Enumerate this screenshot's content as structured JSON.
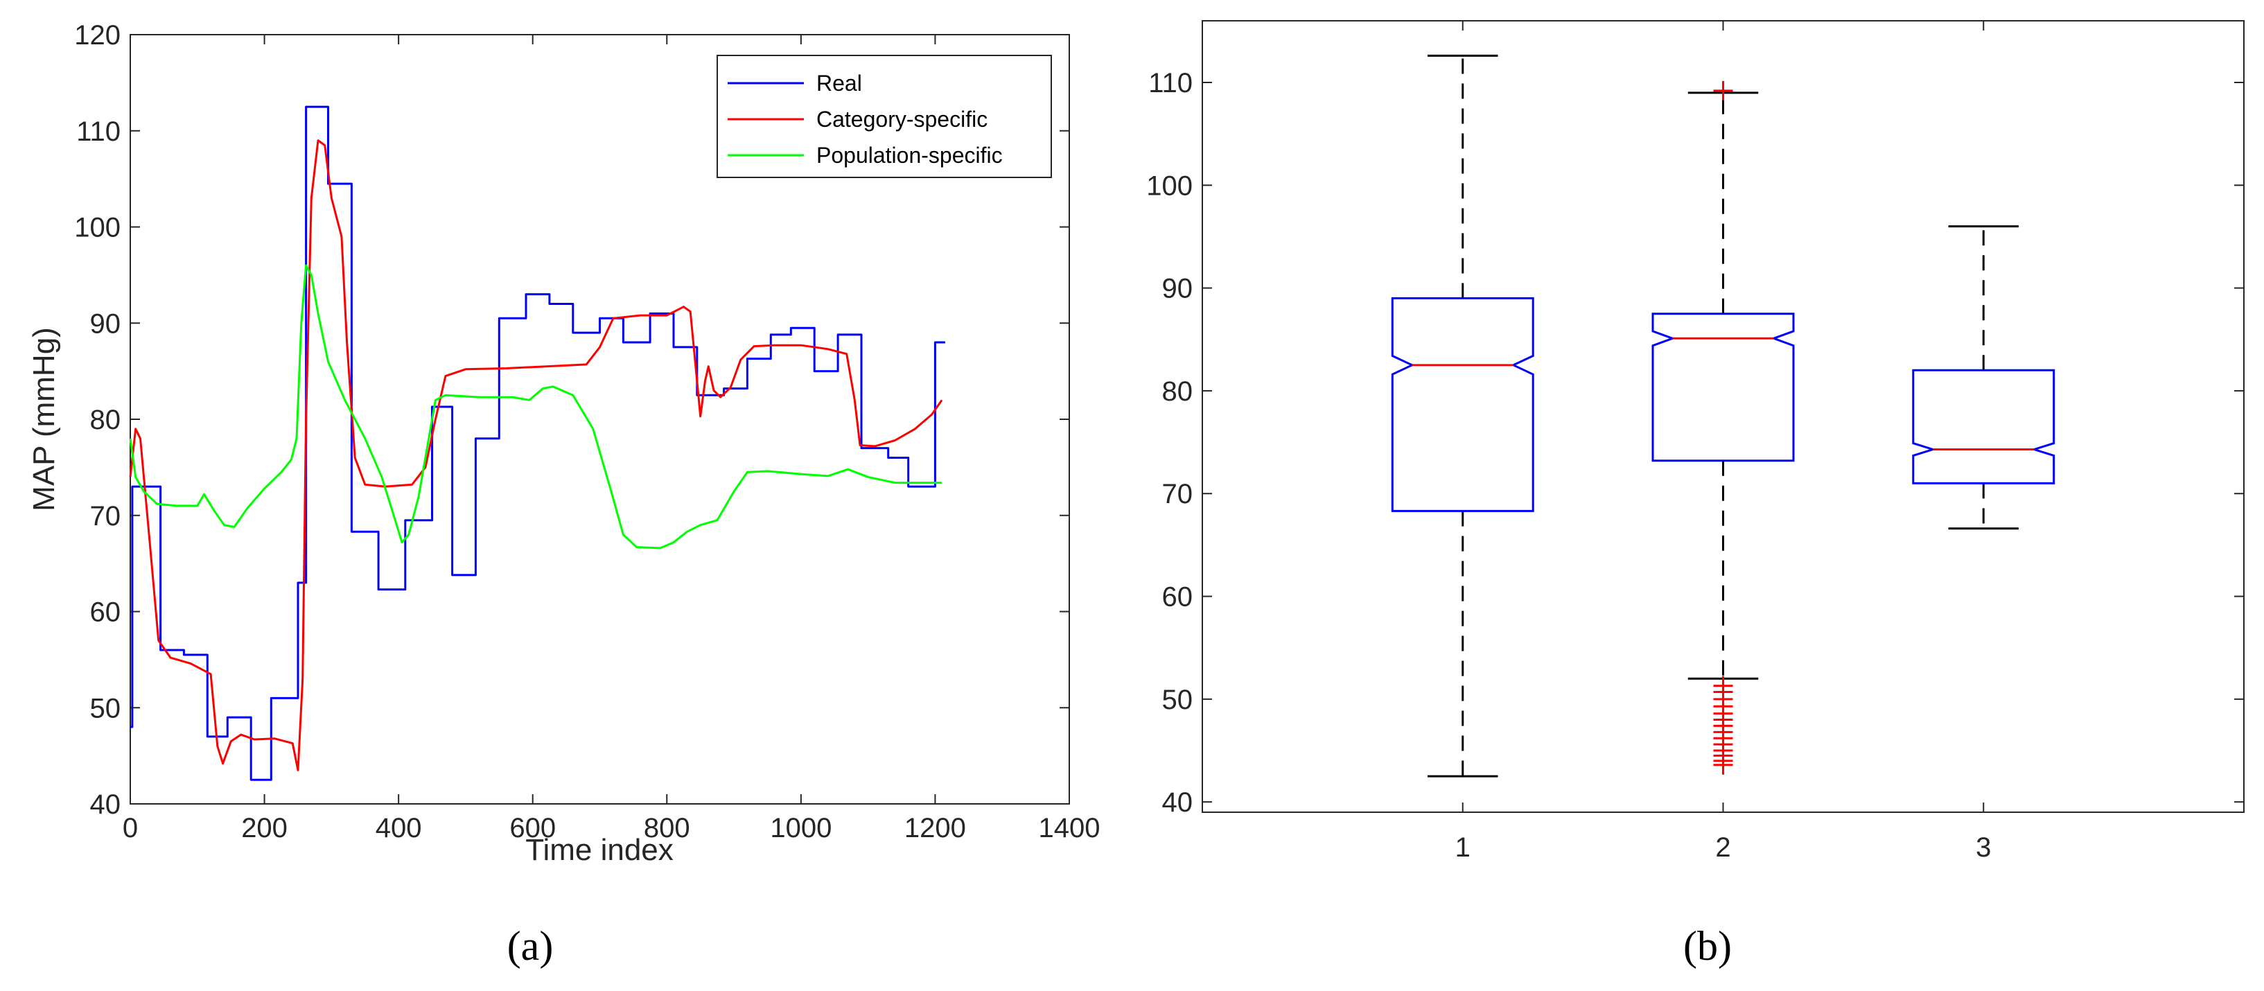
{
  "chart_data": [
    {
      "type": "line",
      "xlabel": "Time index",
      "ylabel": "MAP (mmHg)",
      "xlim": [
        0,
        1400
      ],
      "ylim": [
        40,
        120
      ],
      "xticks": [
        0,
        200,
        400,
        600,
        800,
        1000,
        1200,
        1400
      ],
      "yticks": [
        40,
        50,
        60,
        70,
        80,
        90,
        100,
        110,
        120
      ],
      "legend_position": "top-right",
      "grid": false,
      "caption": "(a)",
      "series": [
        {
          "name": "Real",
          "color": "#0000ff",
          "points": [
            [
              0,
              48
            ],
            [
              3,
              48
            ],
            [
              3,
              73
            ],
            [
              45,
              73
            ],
            [
              45,
              56
            ],
            [
              80,
              56
            ],
            [
              80,
              55.5
            ],
            [
              115,
              55.5
            ],
            [
              115,
              47
            ],
            [
              145,
              47
            ],
            [
              145,
              49
            ],
            [
              180,
              49
            ],
            [
              180,
              42.5
            ],
            [
              210,
              42.5
            ],
            [
              210,
              51
            ],
            [
              250,
              51
            ],
            [
              250,
              63
            ],
            [
              262,
              63
            ],
            [
              262,
              112.5
            ],
            [
              295,
              112.5
            ],
            [
              295,
              104.5
            ],
            [
              330,
              104.5
            ],
            [
              330,
              68.3
            ],
            [
              370,
              68.3
            ],
            [
              370,
              62.3
            ],
            [
              410,
              62.3
            ],
            [
              410,
              69.5
            ],
            [
              450,
              69.5
            ],
            [
              450,
              81.3
            ],
            [
              480,
              81.3
            ],
            [
              480,
              63.8
            ],
            [
              515,
              63.8
            ],
            [
              515,
              78
            ],
            [
              550,
              78
            ],
            [
              550,
              90.5
            ],
            [
              590,
              90.5
            ],
            [
              590,
              93
            ],
            [
              625,
              93
            ],
            [
              625,
              92
            ],
            [
              660,
              92
            ],
            [
              660,
              89
            ],
            [
              700,
              89
            ],
            [
              700,
              90.5
            ],
            [
              735,
              90.5
            ],
            [
              735,
              88
            ],
            [
              775,
              88
            ],
            [
              775,
              91
            ],
            [
              810,
              91
            ],
            [
              810,
              87.5
            ],
            [
              845,
              87.5
            ],
            [
              845,
              82.5
            ],
            [
              885,
              82.5
            ],
            [
              885,
              83.2
            ],
            [
              920,
              83.2
            ],
            [
              920,
              86.3
            ],
            [
              955,
              86.3
            ],
            [
              955,
              88.8
            ],
            [
              985,
              88.8
            ],
            [
              985,
              89.5
            ],
            [
              1020,
              89.5
            ],
            [
              1020,
              85
            ],
            [
              1055,
              85
            ],
            [
              1055,
              88.8
            ],
            [
              1090,
              88.8
            ],
            [
              1090,
              77
            ],
            [
              1130,
              77
            ],
            [
              1130,
              76
            ],
            [
              1160,
              76
            ],
            [
              1160,
              73
            ],
            [
              1200,
              73
            ],
            [
              1200,
              88
            ],
            [
              1215,
              88
            ]
          ]
        },
        {
          "name": "Category-specific",
          "color": "#ff0000",
          "points": [
            [
              0,
              74
            ],
            [
              8,
              79
            ],
            [
              15,
              78
            ],
            [
              28,
              68
            ],
            [
              42,
              57
            ],
            [
              60,
              55.2
            ],
            [
              90,
              54.6
            ],
            [
              120,
              53.5
            ],
            [
              130,
              46
            ],
            [
              138,
              44.2
            ],
            [
              150,
              46.5
            ],
            [
              165,
              47.2
            ],
            [
              185,
              46.7
            ],
            [
              215,
              46.8
            ],
            [
              242,
              46.3
            ],
            [
              250,
              43.5
            ],
            [
              257,
              53
            ],
            [
              262,
              80
            ],
            [
              270,
              103
            ],
            [
              280,
              109
            ],
            [
              290,
              108.5
            ],
            [
              300,
              103
            ],
            [
              315,
              99
            ],
            [
              323,
              88
            ],
            [
              335,
              76
            ],
            [
              350,
              73.2
            ],
            [
              380,
              73
            ],
            [
              420,
              73.2
            ],
            [
              440,
              75
            ],
            [
              455,
              80
            ],
            [
              470,
              84.5
            ],
            [
              500,
              85.2
            ],
            [
              560,
              85.3
            ],
            [
              620,
              85.5
            ],
            [
              680,
              85.7
            ],
            [
              700,
              87.5
            ],
            [
              720,
              90.5
            ],
            [
              760,
              90.8
            ],
            [
              800,
              90.8
            ],
            [
              825,
              91.7
            ],
            [
              835,
              91.2
            ],
            [
              845,
              84
            ],
            [
              850,
              80.3
            ],
            [
              857,
              84
            ],
            [
              862,
              85.5
            ],
            [
              870,
              83
            ],
            [
              880,
              82.3
            ],
            [
              895,
              83.3
            ],
            [
              910,
              86.2
            ],
            [
              930,
              87.6
            ],
            [
              960,
              87.7
            ],
            [
              1000,
              87.7
            ],
            [
              1040,
              87.3
            ],
            [
              1068,
              86.8
            ],
            [
              1080,
              82
            ],
            [
              1088,
              77.3
            ],
            [
              1110,
              77.2
            ],
            [
              1140,
              77.8
            ],
            [
              1170,
              79
            ],
            [
              1195,
              80.5
            ],
            [
              1210,
              82
            ]
          ]
        },
        {
          "name": "Population-specific",
          "color": "#00ff00",
          "points": [
            [
              0,
              78
            ],
            [
              8,
              74
            ],
            [
              20,
              72.5
            ],
            [
              40,
              71.2
            ],
            [
              70,
              71
            ],
            [
              100,
              71
            ],
            [
              110,
              72.2
            ],
            [
              125,
              70.5
            ],
            [
              140,
              69
            ],
            [
              155,
              68.8
            ],
            [
              175,
              70.8
            ],
            [
              200,
              72.8
            ],
            [
              225,
              74.5
            ],
            [
              240,
              75.8
            ],
            [
              248,
              78
            ],
            [
              255,
              90
            ],
            [
              262,
              96
            ],
            [
              270,
              95
            ],
            [
              280,
              91
            ],
            [
              295,
              86
            ],
            [
              320,
              82
            ],
            [
              350,
              78
            ],
            [
              375,
              74
            ],
            [
              395,
              69.5
            ],
            [
              405,
              67.2
            ],
            [
              415,
              68
            ],
            [
              430,
              72
            ],
            [
              445,
              78
            ],
            [
              455,
              82
            ],
            [
              470,
              82.5
            ],
            [
              520,
              82.3
            ],
            [
              570,
              82.3
            ],
            [
              595,
              82
            ],
            [
              615,
              83.2
            ],
            [
              630,
              83.4
            ],
            [
              660,
              82.5
            ],
            [
              690,
              79
            ],
            [
              715,
              73
            ],
            [
              735,
              68
            ],
            [
              755,
              66.7
            ],
            [
              790,
              66.6
            ],
            [
              810,
              67.2
            ],
            [
              830,
              68.3
            ],
            [
              850,
              69
            ],
            [
              875,
              69.5
            ],
            [
              900,
              72.5
            ],
            [
              920,
              74.5
            ],
            [
              950,
              74.6
            ],
            [
              1000,
              74.3
            ],
            [
              1040,
              74.1
            ],
            [
              1070,
              74.8
            ],
            [
              1100,
              74
            ],
            [
              1140,
              73.4
            ],
            [
              1180,
              73.4
            ],
            [
              1210,
              73.4
            ]
          ]
        }
      ]
    },
    {
      "type": "box",
      "categories": [
        "1",
        "2",
        "3"
      ],
      "ylim": [
        39,
        116
      ],
      "yticks": [
        40,
        50,
        60,
        70,
        80,
        90,
        100,
        110
      ],
      "grid": false,
      "caption": "(b)",
      "box_color": "#0000ff",
      "median_color": "#ff0000",
      "whisker_color": "#000000",
      "outlier_color": "#ff0000",
      "boxes": [
        {
          "label": "1",
          "q1": 68.3,
          "median": 82.5,
          "q3": 89,
          "notch_low": 81.6,
          "notch_high": 83.4,
          "whisker_low": 42.5,
          "whisker_high": 112.6,
          "outliers": []
        },
        {
          "label": "2",
          "q1": 73.2,
          "median": 85.1,
          "q3": 87.5,
          "notch_low": 84.4,
          "notch_high": 85.8,
          "whisker_low": 52,
          "whisker_high": 109,
          "outliers": [
            109.2,
            51.3,
            50.7,
            50,
            49.3,
            48.6,
            48,
            47.4,
            46.8,
            46.2,
            45.6,
            45,
            44.5,
            44,
            43.6
          ]
        },
        {
          "label": "3",
          "q1": 71,
          "median": 74.3,
          "q3": 82,
          "notch_low": 73.7,
          "notch_high": 74.9,
          "whisker_low": 66.6,
          "whisker_high": 96,
          "outliers": []
        }
      ]
    }
  ]
}
